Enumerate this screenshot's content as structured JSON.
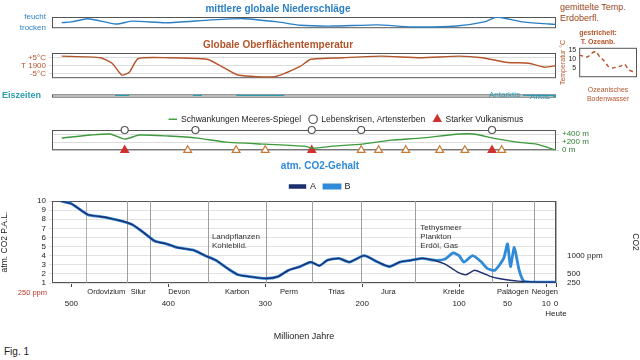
{
  "figure_label": "Fig. 1",
  "header_note": "gemittelte Temp. Erdoberfl.",
  "chart_data": [
    {
      "type": "line",
      "title": "mittlere globale Niederschläge",
      "x": [
        510,
        500,
        483,
        454,
        437,
        402,
        356,
        322,
        287,
        264,
        230,
        184,
        149,
        103,
        74,
        61,
        35,
        7,
        0
      ],
      "values": [
        0.5,
        0.56,
        0.85,
        0.37,
        0.63,
        0.48,
        0.74,
        0.85,
        0.56,
        0.26,
        0.19,
        0.3,
        0.11,
        0.19,
        0.56,
        1,
        0.56,
        0.37,
        0.33
      ],
      "color": "#2b7fc4",
      "xlim": [
        520,
        0
      ],
      "ylim": [
        0,
        1
      ],
      "yticks": [
        {
          "value": 0,
          "label": "trocken"
        },
        {
          "value": 1,
          "label": "feucht"
        }
      ],
      "grid": false,
      "tick_labels": "y"
    },
    {
      "type": "line",
      "title": "Globale Oberflächentemperatur",
      "x": [
        510,
        470,
        458,
        448,
        440,
        431,
        400,
        360,
        345,
        328,
        290,
        264,
        253,
        220,
        180,
        140,
        100,
        76,
        50,
        28,
        12,
        0
      ],
      "values": [
        6,
        5,
        1.5,
        -6,
        -4,
        4.5,
        5,
        4,
        -0.5,
        -6,
        -7,
        -0.5,
        4,
        5,
        6,
        5,
        6,
        5,
        2,
        1.5,
        -1,
        0
      ],
      "color": "#b4542a",
      "xlim": [
        520,
        0
      ],
      "ylim": [
        -8,
        8
      ],
      "yticks": [
        {
          "value": 5,
          "label": "+5°C"
        },
        {
          "value": 0,
          "label": "T 1900"
        },
        {
          "value": -5,
          "label": "-5°C"
        }
      ],
      "grid": true,
      "tick_labels": "y"
    },
    {
      "type": "bar",
      "orientation": "horizontal",
      "categories": [
        "Eiszeiten",
        null
      ],
      "intervals": [
        {
          "category": 0,
          "start": 455,
          "end": 440
        },
        {
          "category": 0,
          "start": 375,
          "end": 365
        },
        {
          "category": 0,
          "start": 330,
          "end": 280
        },
        {
          "category": 0,
          "start": 34,
          "end": 0,
          "label": "Antarktis"
        },
        {
          "category": 1,
          "start": 3,
          "end": 0,
          "label": "Arktis"
        }
      ],
      "color": "#2a9db0",
      "xlim": [
        520,
        0
      ],
      "grid": false,
      "tick_labels": "y"
    },
    {
      "type": "line",
      "x": [
        510,
        480,
        460,
        445,
        430,
        400,
        370,
        340,
        300,
        260,
        250,
        230,
        200,
        170,
        140,
        100,
        85,
        65,
        40,
        20,
        0
      ],
      "series": [
        {
          "name": "Schwankungen Meeres-Spiegel",
          "color": "#3d9a3d",
          "values": [
            300,
            375,
            400,
            275,
            375,
            350,
            300,
            200,
            150,
            100,
            50,
            100,
            150,
            250,
            300,
            400,
            400,
            300,
            200,
            150,
            0
          ]
        }
      ],
      "events": [
        {
          "name": "Lebenskrisen, Artensterben",
          "x": [
            445,
            372,
            252,
            201,
            66
          ],
          "marker": "open-circle",
          "color": "#555555"
        },
        {
          "name": "Starker Vulkanismus",
          "x": [
            445,
            252,
            66
          ],
          "marker": "triangle",
          "color": "#d0312d"
        },
        {
          "x": [
            380,
            330,
            300,
            201,
            183,
            155,
            120,
            94,
            56
          ],
          "marker": "open-triangle",
          "color": "#c87a33"
        }
      ],
      "xlim": [
        520,
        0
      ],
      "ylim": [
        0,
        500
      ],
      "yticks": [
        {
          "value": 0,
          "label": "0 m"
        },
        {
          "value": 200,
          "label": "+200 m"
        },
        {
          "value": 400,
          "label": "+400 m"
        }
      ],
      "grid": true,
      "legend": "top",
      "tick_labels": "y"
    },
    {
      "type": "line",
      "title": "atm. CO2-Gehalt",
      "series": [
        {
          "name": "A",
          "color": "#1d2f6e",
          "x": [
            511,
            500,
            483,
            471,
            460,
            448,
            437,
            425,
            414,
            402,
            391,
            374,
            362,
            351,
            339,
            328,
            316,
            299,
            287,
            276,
            264,
            253,
            244,
            236,
            224,
            213,
            198,
            184,
            172,
            161,
            149,
            138,
            126,
            115,
            106,
            100,
            93,
            84,
            76,
            67,
            59,
            39,
            18,
            0
          ],
          "values": [
            10,
            9.7,
            8.5,
            8.3,
            8.1,
            7.8,
            7.4,
            6.5,
            5.6,
            5.3,
            4.9,
            4.6,
            4,
            3.5,
            2.6,
            1.9,
            1.7,
            1.5,
            1.7,
            2.4,
            2.8,
            3.3,
            2.9,
            3.5,
            3.7,
            3.3,
            4,
            3.3,
            2.8,
            3.3,
            3.5,
            3.7,
            3.5,
            3.1,
            2.5,
            2.1,
            1.9,
            2.4,
            2.1,
            1.7,
            1.5,
            1.2,
            1.1,
            1.1
          ]
        },
        {
          "name": "B",
          "color": "#2f8ad8",
          "x": [
            511,
            500,
            483,
            471,
            460,
            448,
            437,
            425,
            414,
            402,
            391,
            374,
            362,
            351,
            339,
            328,
            316,
            299,
            287,
            276,
            264,
            253,
            244,
            236,
            224,
            213,
            198,
            184,
            172,
            161,
            149,
            138,
            126,
            115,
            106,
            100,
            95,
            86,
            77,
            71,
            63,
            54,
            50,
            47,
            43,
            38,
            33,
            18,
            0
          ],
          "values": [
            10,
            9.7,
            8.5,
            8.3,
            8.1,
            7.8,
            7.4,
            6.5,
            5.6,
            5.3,
            4.9,
            4.6,
            4,
            3.5,
            2.6,
            1.9,
            1.7,
            1.5,
            1.7,
            2.4,
            2.8,
            3.3,
            2.9,
            3.5,
            3.7,
            3.3,
            4,
            3.3,
            2.8,
            3.3,
            3.5,
            3.7,
            3.5,
            3.6,
            4.3,
            4,
            3.3,
            4,
            3.3,
            2.6,
            2.4,
            3.7,
            5.3,
            2.8,
            4.9,
            2.4,
            1.2,
            1.1,
            1.1
          ]
        }
      ],
      "xlim": [
        520,
        0
      ],
      "xticks": [
        500,
        400,
        300,
        200,
        100,
        50,
        10,
        {
          "value": 0,
          "label": [
            "0",
            "Heute"
          ]
        }
      ],
      "xlabel": "Millionen Jahre",
      "ylim": [
        1,
        10
      ],
      "yticks": [
        1,
        2,
        3,
        4,
        5,
        6,
        7,
        8,
        9,
        10
      ],
      "ylabel": "atm. CO2 P.A.L.",
      "y_note": {
        "value": 1,
        "label": "250 ppm"
      },
      "y2lim": [
        250,
        2500
      ],
      "y2ticks": [
        250,
        500,
        {
          "value": 1000,
          "label": "1000 ppm"
        }
      ],
      "y2label": "CO2",
      "grid": true,
      "legend": "top",
      "periods": [
        {
          "name": "Ordovizium",
          "start": 485,
          "end": 443
        },
        {
          "name": "Silur",
          "start": 443,
          "end": 419
        },
        {
          "name": "Devon",
          "start": 419,
          "end": 359
        },
        {
          "name": "Karbon",
          "start": 359,
          "end": 299
        },
        {
          "name": "Perm",
          "start": 299,
          "end": 252
        },
        {
          "name": "Trias",
          "start": 252,
          "end": 201
        },
        {
          "name": "Jura",
          "start": 201,
          "end": 145
        },
        {
          "name": "Kreide",
          "start": 145,
          "end": 66
        },
        {
          "name": "Paläogen",
          "start": 66,
          "end": 23
        },
        {
          "name": "Neogen",
          "start": 23,
          "end": 0
        }
      ],
      "annotations": [
        {
          "text": [
            "Landpflanzen",
            "Kohlebild."
          ],
          "x": 355,
          "y": 6.5
        },
        {
          "text": [
            "Tethysmeer",
            "Plankton",
            "Erdöl, Gas"
          ],
          "x": 140,
          "y": 7.5
        }
      ]
    },
    {
      "type": "line",
      "title": "gestrichelt: T. Ozeanb.",
      "x": [
        70,
        60,
        55,
        50,
        45,
        40,
        35,
        30,
        20,
        15,
        10,
        5,
        0
      ],
      "values": [
        12,
        11,
        13,
        14,
        11,
        9,
        6,
        5,
        6,
        7,
        4,
        3,
        2
      ],
      "color": "#b4542a",
      "line_style": "dashed",
      "xlim": [
        70,
        0
      ],
      "ylim": [
        0,
        16
      ],
      "yticks": [
        5,
        10,
        15
      ],
      "ylabel": "Temperatur °C",
      "xlabel": "Ozeanisches Bodenwasser",
      "grid": false,
      "tick_labels": "y"
    }
  ]
}
